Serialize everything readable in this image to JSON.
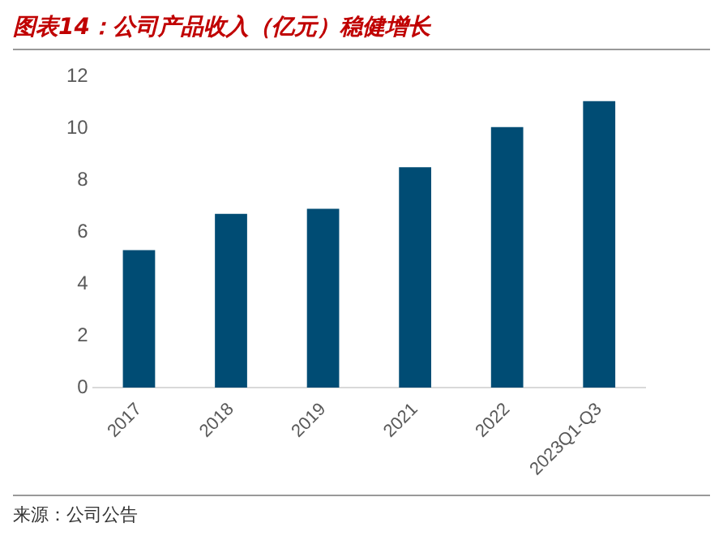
{
  "chart_data": {
    "type": "bar",
    "title": "图表14：公司产品收入（亿元）稳健增长",
    "categories": [
      "2017",
      "2018",
      "2019",
      "2021",
      "2022",
      "2023Q1-Q3"
    ],
    "values": [
      5.3,
      6.7,
      6.9,
      8.5,
      10.05,
      11.05
    ],
    "color": "#004c74",
    "ylim": [
      0,
      12
    ],
    "yticks": [
      0,
      2,
      4,
      6,
      8,
      10,
      12
    ],
    "grid": false,
    "annotations": [
      "来源：公司公告"
    ]
  }
}
